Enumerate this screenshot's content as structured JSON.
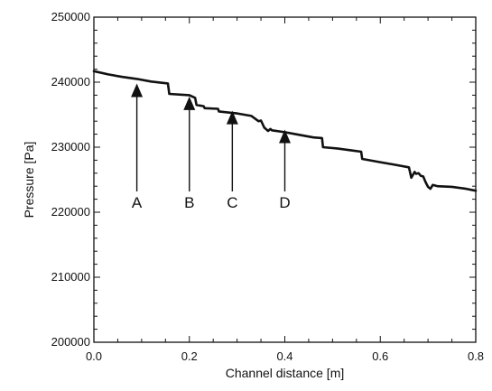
{
  "chart_data": {
    "type": "line",
    "title": "",
    "xlabel": "Channel distance [m]",
    "ylabel": "Pressure [Pa]",
    "xlim": [
      0.0,
      0.8
    ],
    "ylim": [
      200000,
      250000
    ],
    "x_ticks": [
      "0.0",
      "0.2",
      "0.4",
      "0.6",
      "0.8"
    ],
    "y_ticks": [
      "200000",
      "210000",
      "220000",
      "230000",
      "240000",
      "250000"
    ],
    "grid": false,
    "legend": "none",
    "line_color": "#111111",
    "series": [
      {
        "x": [
          0.0,
          0.03,
          0.06,
          0.09,
          0.12,
          0.155,
          0.158,
          0.2,
          0.212,
          0.215,
          0.23,
          0.232,
          0.26,
          0.262,
          0.3,
          0.33,
          0.345,
          0.35,
          0.357,
          0.365,
          0.37,
          0.373,
          0.4,
          0.43,
          0.46,
          0.478,
          0.48,
          0.51,
          0.54,
          0.56,
          0.562,
          0.6,
          0.63,
          0.66,
          0.665,
          0.672,
          0.675,
          0.68,
          0.685,
          0.69,
          0.695,
          0.7,
          0.705,
          0.71,
          0.72,
          0.75,
          0.78,
          0.8
        ],
        "y": [
          241700,
          241200,
          240800,
          240500,
          240100,
          239800,
          238200,
          238000,
          237600,
          236500,
          236300,
          236000,
          235900,
          235500,
          235200,
          234800,
          234000,
          234100,
          233000,
          232500,
          232800,
          232600,
          232300,
          231900,
          231500,
          231400,
          230000,
          229800,
          229500,
          229300,
          228200,
          227700,
          227300,
          226900,
          225300,
          226200,
          225900,
          226000,
          225600,
          225500,
          224600,
          223900,
          223600,
          224200,
          224000,
          223900,
          223600,
          223300
        ]
      }
    ],
    "annotations": [
      {
        "label": "A",
        "x": 0.09,
        "y_tail": 223200,
        "y_head": 239800
      },
      {
        "label": "B",
        "x": 0.2,
        "y_tail": 223200,
        "y_head": 237800
      },
      {
        "label": "C",
        "x": 0.29,
        "y_tail": 223200,
        "y_head": 235600
      },
      {
        "label": "D",
        "x": 0.4,
        "y_tail": 223200,
        "y_head": 232700
      }
    ]
  }
}
